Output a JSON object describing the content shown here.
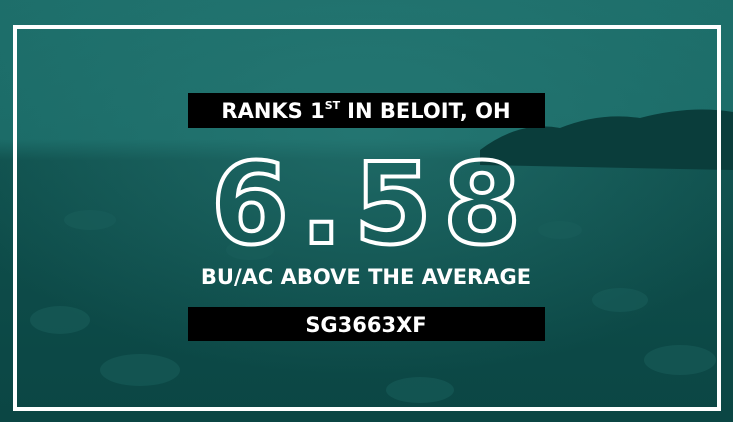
{
  "rank": {
    "text_before": "RANKS 1",
    "superscript": "ST",
    "text_after": "IN BELOIT, OH"
  },
  "value": "6.58",
  "unit_label": "BU/AC ABOVE THE AVERAGE",
  "product": "SG3663XF"
}
